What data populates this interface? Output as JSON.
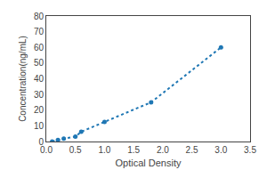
{
  "chart_data": {
    "type": "line",
    "x": [
      0.1,
      0.2,
      0.3,
      0.5,
      0.6,
      1.0,
      1.8,
      3.0
    ],
    "values": [
      0.0,
      0.94,
      1.88,
      3.13,
      6.25,
      12.5,
      25.0,
      60.0
    ],
    "xlabel": "Optical Density",
    "ylabel": "Concentration(ng/mL)",
    "xlim": [
      0,
      3.5
    ],
    "ylim": [
      0,
      80
    ],
    "xticks": [
      {
        "value": 0,
        "label": "0.0"
      },
      0.5,
      {
        "value": 1,
        "label": "1.0"
      },
      1.5,
      {
        "value": 2,
        "label": "2.0"
      },
      2.5,
      {
        "value": 3,
        "label": "3.0"
      },
      3.5
    ],
    "yticks": [
      0,
      10,
      20,
      30,
      40,
      50,
      60,
      70,
      80
    ],
    "grid": false,
    "line_style": "dotted",
    "marker": "circle"
  }
}
